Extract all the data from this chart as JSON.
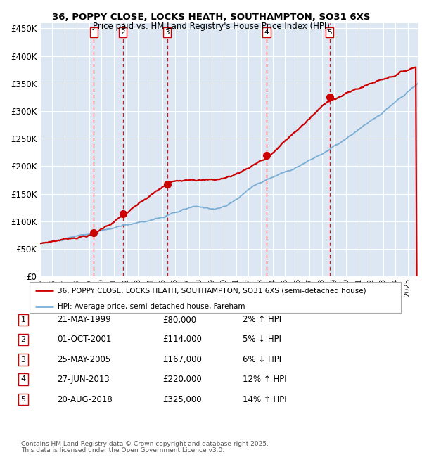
{
  "title1": "36, POPPY CLOSE, LOCKS HEATH, SOUTHAMPTON, SO31 6XS",
  "title2": "Price paid vs. HM Land Registry's House Price Index (HPI)",
  "ylim": [
    0,
    460000
  ],
  "yticks": [
    0,
    50000,
    100000,
    150000,
    200000,
    250000,
    300000,
    350000,
    400000,
    450000
  ],
  "xlim_start": 1995.0,
  "xlim_end": 2025.83,
  "bg_color": "#dce7f3",
  "grid_color": "#ffffff",
  "red_line_color": "#cc0000",
  "blue_line_color": "#7aadd4",
  "dashed_color": "#cc0000",
  "marker_color": "#cc0000",
  "legend1": "36, POPPY CLOSE, LOCKS HEATH, SOUTHAMPTON, SO31 6XS (semi-detached house)",
  "legend2": "HPI: Average price, semi-detached house, Fareham",
  "transactions": [
    {
      "num": 1,
      "date": 1999.38,
      "price": 80000,
      "label": "21-MAY-1999",
      "price_str": "£80,000",
      "hpi_str": "2% ↑ HPI"
    },
    {
      "num": 2,
      "date": 2001.75,
      "price": 114000,
      "label": "01-OCT-2001",
      "price_str": "£114,000",
      "hpi_str": "5% ↓ HPI"
    },
    {
      "num": 3,
      "date": 2005.38,
      "price": 167000,
      "label": "25-MAY-2005",
      "price_str": "£167,000",
      "hpi_str": "6% ↓ HPI"
    },
    {
      "num": 4,
      "date": 2013.49,
      "price": 220000,
      "label": "27-JUN-2013",
      "price_str": "£220,000",
      "hpi_str": "12% ↑ HPI"
    },
    {
      "num": 5,
      "date": 2018.64,
      "price": 325000,
      "label": "20-AUG-2018",
      "price_str": "£325,000",
      "hpi_str": "14% ↑ HPI"
    }
  ],
  "footnote1": "Contains HM Land Registry data © Crown copyright and database right 2025.",
  "footnote2": "This data is licensed under the Open Government Licence v3.0."
}
